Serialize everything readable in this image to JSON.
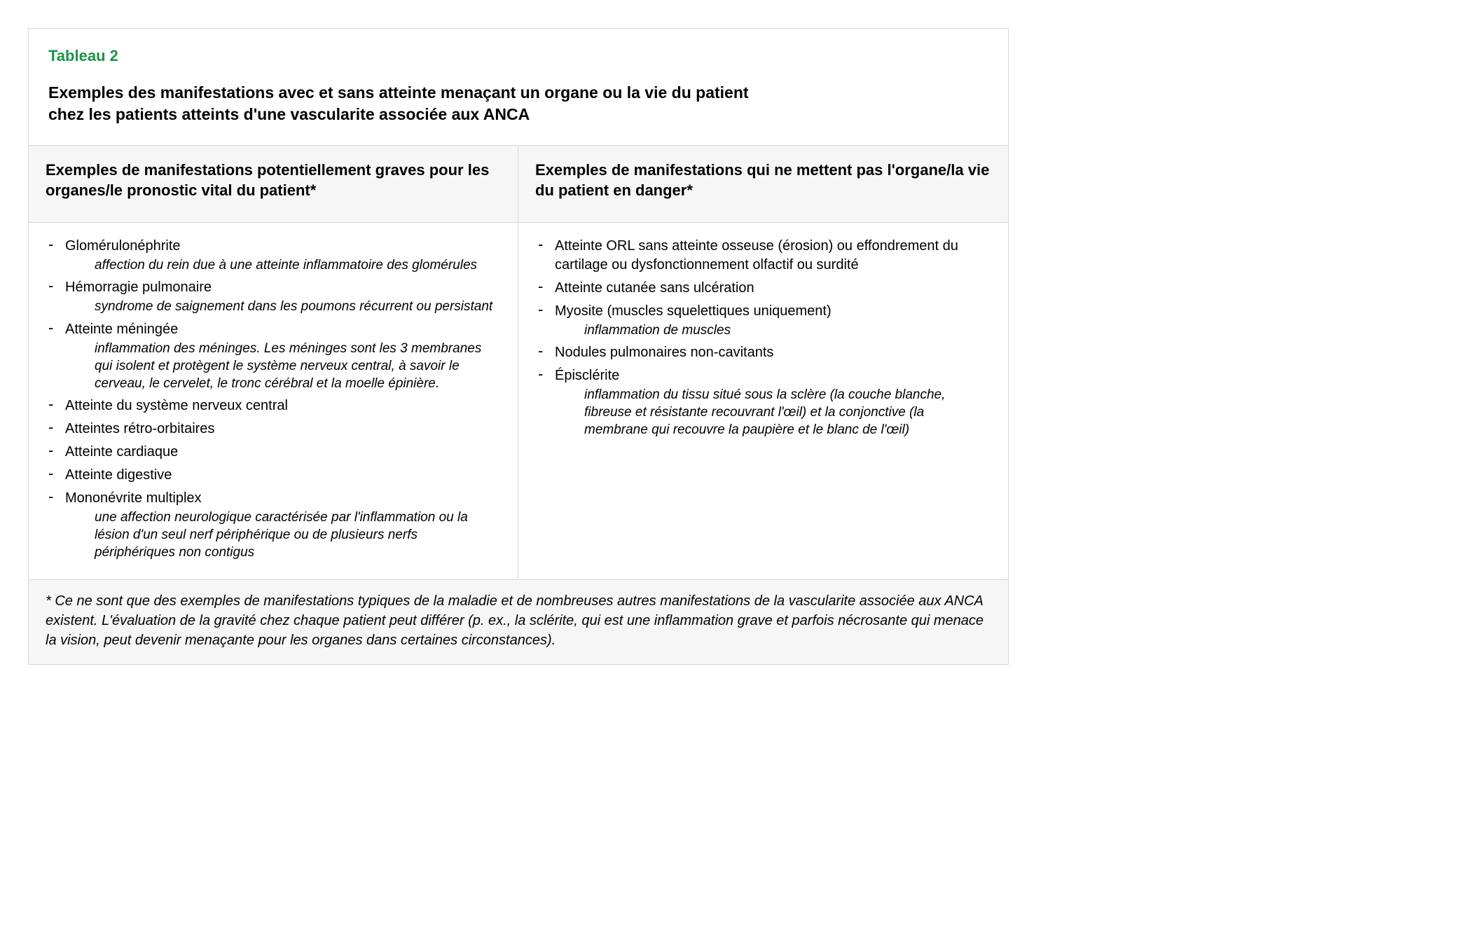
{
  "colors": {
    "label_color": "#1a9447",
    "border_color": "#d8d8d8",
    "header_bg": "#f6f6f6",
    "text_color": "#000000",
    "page_bg": "#ffffff"
  },
  "typography": {
    "base_font": "Arial, Helvetica, sans-serif",
    "label_fontsize_pt": 17,
    "title_fontsize_pt": 17,
    "body_fontsize_pt": 15,
    "desc_fontsize_pt": 14
  },
  "table": {
    "label": "Tableau 2",
    "title_line1": "Exemples des manifestations avec et sans atteinte menaçant un organe ou la vie du patient",
    "title_line2": "chez les patients atteints d'une vascularite associée aux ANCA",
    "columns": [
      {
        "header": "Exemples de manifestations potentiellement graves pour les organes/le pronostic vital du patient*",
        "items": [
          {
            "label": "Glomérulonéphrite",
            "desc": "affection du rein due à une atteinte inflammatoire des glomérules"
          },
          {
            "label": "Hémorragie pulmonaire",
            "desc": "syndrome de saignement dans les poumons récurrent ou persistant"
          },
          {
            "label": "Atteinte méningée",
            "desc": "inflammation des méninges. Les méninges sont les 3 membranes qui isolent et protègent le système nerveux central, à savoir le cerveau, le cervelet, le tronc cérébral et la moelle épinière."
          },
          {
            "label": "Atteinte du système nerveux central",
            "desc": ""
          },
          {
            "label": "Atteintes rétro-orbitaires",
            "desc": ""
          },
          {
            "label": "Atteinte cardiaque",
            "desc": ""
          },
          {
            "label": "Atteinte digestive",
            "desc": ""
          },
          {
            "label": "Mononévrite multiplex",
            "desc": "une affection neurologique caractérisée par l'inflammation ou la lésion d'un seul nerf périphérique ou de plusieurs nerfs périphériques non contigus"
          }
        ]
      },
      {
        "header": "Exemples de manifestations qui ne mettent pas l'organe/la vie du patient en danger*",
        "items": [
          {
            "label": "Atteinte ORL sans atteinte osseuse (érosion) ou effondrement du cartilage ou dysfonctionnement olfactif ou surdité",
            "desc": ""
          },
          {
            "label": "Atteinte cutanée sans ulcération",
            "desc": ""
          },
          {
            "label": "Myosite (muscles squelettiques uniquement)",
            "desc": "inflammation de muscles"
          },
          {
            "label": "Nodules pulmonaires non-cavitants",
            "desc": ""
          },
          {
            "label": "Épisclérite",
            "desc": "inflammation du tissu situé sous la sclère (la couche blanche, fibreuse et résistante recouvrant l'œil) et la conjonctive (la membrane qui recouvre la paupière et le blanc de l'œil)"
          }
        ]
      }
    ],
    "footnote": "* Ce ne sont que des exemples de manifestations typiques de la maladie et de nombreuses autres manifestations de la vascularite associée aux ANCA existent. L'évaluation de la gravité chez chaque patient peut différer (p. ex., la sclérite, qui est une inflammation grave et parfois nécrosante qui menace la vision, peut devenir menaçante pour les organes dans certaines circonstances)."
  }
}
